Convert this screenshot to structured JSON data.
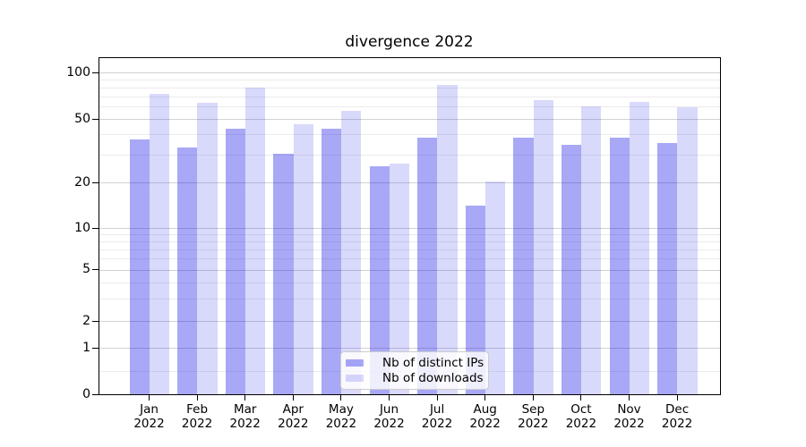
{
  "title": "divergence 2022",
  "chart_data": {
    "type": "bar",
    "title": "divergence 2022",
    "yscale": "symlog",
    "ylim": [
      0,
      125
    ],
    "grid": true,
    "legend_position": "lower center",
    "yticks": [
      0,
      1,
      2,
      5,
      10,
      20,
      50,
      100
    ],
    "yticks_minor": [
      0.5,
      3,
      4,
      6,
      7,
      8,
      9,
      30,
      40,
      60,
      70,
      80,
      90
    ],
    "xticklabels": [
      {
        "line1": "Jan",
        "line2": "2022"
      },
      {
        "line1": "Feb",
        "line2": "2022"
      },
      {
        "line1": "Mar",
        "line2": "2022"
      },
      {
        "line1": "Apr",
        "line2": "2022"
      },
      {
        "line1": "May",
        "line2": "2022"
      },
      {
        "line1": "Jun",
        "line2": "2022"
      },
      {
        "line1": "Jul",
        "line2": "2022"
      },
      {
        "line1": "Aug",
        "line2": "2022"
      },
      {
        "line1": "Sep",
        "line2": "2022"
      },
      {
        "line1": "Oct",
        "line2": "2022"
      },
      {
        "line1": "Nov",
        "line2": "2022"
      },
      {
        "line1": "Dec",
        "line2": "2022"
      }
    ],
    "series": [
      {
        "name": "Nb of distinct IPs",
        "color": "rgba(0,0,230,0.34)",
        "values": [
          37,
          33,
          43,
          30,
          43,
          25,
          38,
          14,
          38,
          34,
          38,
          35
        ]
      },
      {
        "name": "Nb of downloads",
        "color": "rgba(0,0,230,0.15)",
        "values": [
          72,
          63,
          79,
          46,
          56,
          26,
          82,
          20,
          66,
          60,
          64,
          59
        ]
      }
    ],
    "colors": {
      "grid_major": "#d2d2d2",
      "grid_minor": "#ebebeb",
      "axis": "#000000",
      "background": "#ffffff"
    }
  }
}
